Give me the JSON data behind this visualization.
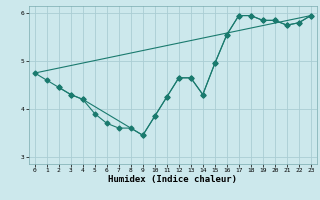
{
  "xlabel": "Humidex (Indice chaleur)",
  "xlim": [
    -0.5,
    23.5
  ],
  "ylim": [
    2.85,
    6.15
  ],
  "yticks": [
    3,
    4,
    5,
    6
  ],
  "xticks": [
    0,
    1,
    2,
    3,
    4,
    5,
    6,
    7,
    8,
    9,
    10,
    11,
    12,
    13,
    14,
    15,
    16,
    17,
    18,
    19,
    20,
    21,
    22,
    23
  ],
  "bg_color": "#cce8ec",
  "grid_color": "#aacdd4",
  "line_color": "#1a7a6e",
  "line1_x": [
    0,
    1,
    2,
    3,
    4,
    5,
    6,
    7,
    8,
    9,
    10,
    11,
    12,
    13,
    14,
    15,
    16,
    17,
    18,
    19,
    20,
    21,
    22,
    23
  ],
  "line1_y": [
    4.75,
    4.6,
    4.45,
    4.3,
    4.2,
    3.9,
    3.7,
    3.6,
    3.6,
    3.45,
    3.85,
    4.25,
    4.65,
    4.65,
    4.3,
    4.95,
    5.55,
    5.95,
    5.95,
    5.85,
    5.85,
    5.75,
    5.8,
    5.95
  ],
  "line2_x": [
    0,
    23
  ],
  "line2_y": [
    4.75,
    5.95
  ],
  "line3_x": [
    2,
    3,
    4,
    9,
    10,
    11,
    12,
    13,
    14,
    15,
    16,
    17,
    18,
    19,
    20,
    21,
    22,
    23
  ],
  "line3_y": [
    4.45,
    4.3,
    4.2,
    3.45,
    3.85,
    4.25,
    4.65,
    4.65,
    4.3,
    4.95,
    5.55,
    5.95,
    5.95,
    5.85,
    5.85,
    5.75,
    5.8,
    5.95
  ],
  "marker_size": 2.5,
  "linewidth": 0.8,
  "tick_fontsize": 4.5,
  "label_fontsize": 6.5,
  "label_fontweight": "bold"
}
